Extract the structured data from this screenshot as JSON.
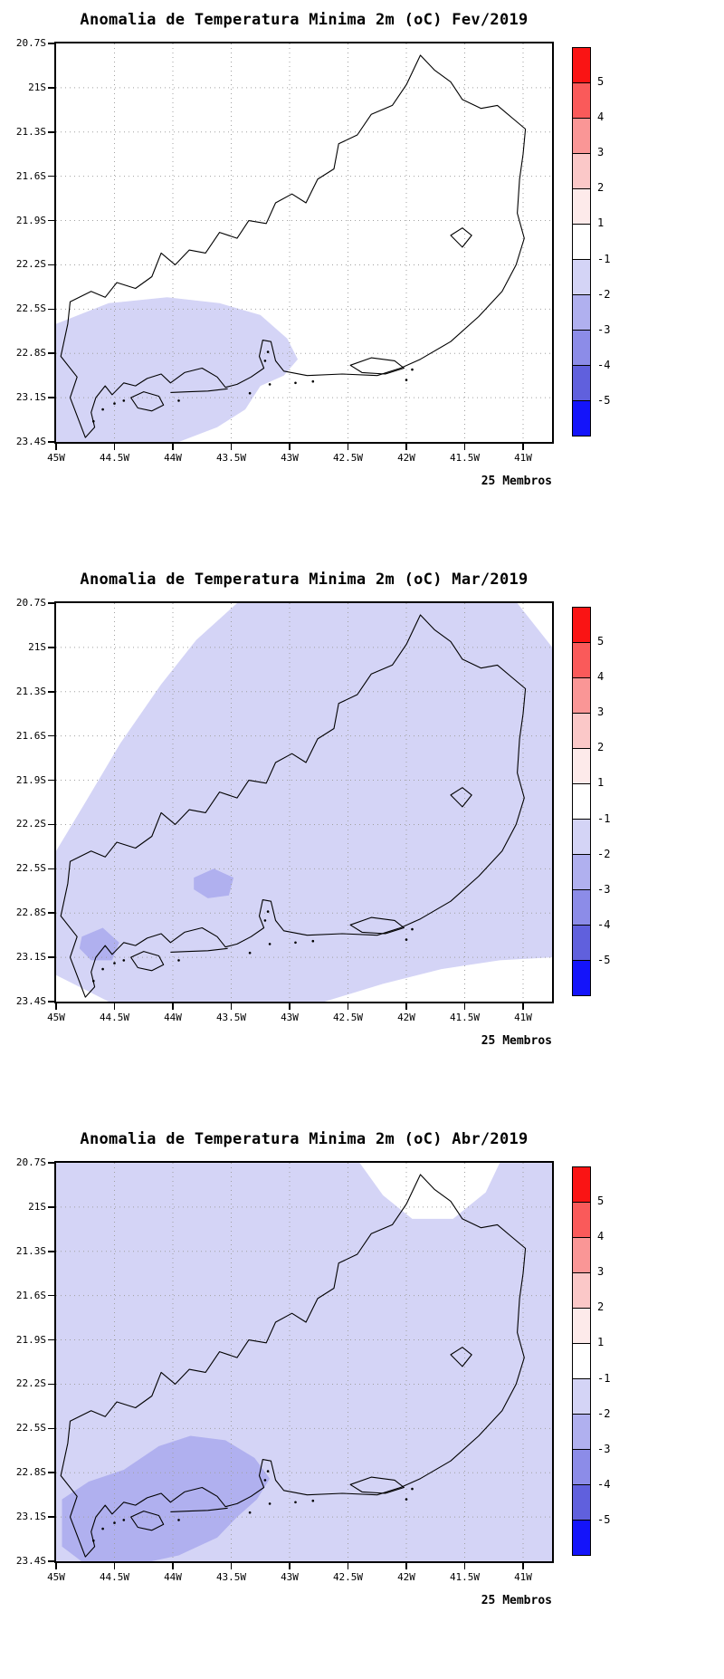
{
  "page": {
    "background": "#ffffff"
  },
  "panels": [
    {
      "title": "Anomalia de Temperatura Minima 2m (oC) Fev/2019",
      "members_label": "25 Membros"
    },
    {
      "title": "Anomalia de Temperatura Minima 2m (oC) Mar/2019",
      "members_label": "25 Membros"
    },
    {
      "title": "Anomalia de Temperatura Minima 2m (oC) Abr/2019",
      "members_label": "25 Membros"
    }
  ],
  "axes": {
    "lat_ticks": [
      {
        "label": "20.7S",
        "deg": 20.7
      },
      {
        "label": "21S",
        "deg": 21.0
      },
      {
        "label": "21.3S",
        "deg": 21.3
      },
      {
        "label": "21.6S",
        "deg": 21.6
      },
      {
        "label": "21.9S",
        "deg": 21.9
      },
      {
        "label": "22.2S",
        "deg": 22.2
      },
      {
        "label": "22.5S",
        "deg": 22.5
      },
      {
        "label": "22.8S",
        "deg": 22.8
      },
      {
        "label": "23.1S",
        "deg": 23.1
      },
      {
        "label": "23.4S",
        "deg": 23.4
      }
    ],
    "lon_ticks": [
      {
        "label": "45W",
        "deg": 45.0
      },
      {
        "label": "44.5W",
        "deg": 44.5
      },
      {
        "label": "44W",
        "deg": 44.0
      },
      {
        "label": "43.5W",
        "deg": 43.5
      },
      {
        "label": "43W",
        "deg": 43.0
      },
      {
        "label": "42.5W",
        "deg": 42.5
      },
      {
        "label": "42W",
        "deg": 42.0
      },
      {
        "label": "41.5W",
        "deg": 41.5
      },
      {
        "label": "41W",
        "deg": 41.0
      }
    ]
  },
  "colorbar": {
    "tick_labels": [
      "5",
      "4",
      "3",
      "2",
      "1",
      "-1",
      "-2",
      "-3",
      "-4",
      "-5"
    ],
    "segments": [
      "#fa1414",
      "#fa5a5a",
      "#fa9696",
      "#fbc8c8",
      "#fdeaea",
      "#ffffff",
      "#d4d4f6",
      "#b0b0ef",
      "#8c8ce8",
      "#6060dd",
      "#1414fa"
    ]
  },
  "chart_data": [
    {
      "type": "heatmap",
      "title": "Anomalia de Temperatura Minima 2m (oC) Fev/2019",
      "region": "Rio de Janeiro state, Brazil (coastline and border outline)",
      "ensemble_note": "25 Membros",
      "x_axis": {
        "label": "longitude",
        "ticks": [
          "45W",
          "44.5W",
          "44W",
          "43.5W",
          "43W",
          "42.5W",
          "42W",
          "41.5W",
          "41W"
        ],
        "range_deg_west": [
          45.0,
          40.75
        ]
      },
      "y_axis": {
        "label": "latitude",
        "ticks": [
          "20.7S",
          "21S",
          "21.3S",
          "21.6S",
          "21.9S",
          "22.2S",
          "22.5S",
          "22.8S",
          "23.1S",
          "23.4S"
        ],
        "range_deg_south": [
          20.7,
          23.4
        ]
      },
      "colorbar_levels": [
        5,
        4,
        3,
        2,
        1,
        -1,
        -2,
        -3,
        -4,
        -5
      ],
      "grid": "dotted 0.5deg lon x 0.3deg lat",
      "background_anomaly_band_degC": "-1 to 1 (white)",
      "shaded_regions": [
        {
          "anomaly_band_degC": "-2 to -1",
          "color": "#d4d4f6",
          "polygon_lon_lat": [
            [
              45.0,
              22.6
            ],
            [
              44.55,
              22.46
            ],
            [
              44.05,
              22.42
            ],
            [
              43.6,
              22.46
            ],
            [
              43.25,
              22.54
            ],
            [
              43.02,
              22.7
            ],
            [
              42.93,
              22.84
            ],
            [
              43.05,
              22.95
            ],
            [
              43.25,
              23.02
            ],
            [
              43.38,
              23.18
            ],
            [
              43.62,
              23.3
            ],
            [
              43.95,
              23.4
            ],
            [
              44.4,
              23.44
            ],
            [
              45.0,
              23.42
            ]
          ]
        }
      ]
    },
    {
      "type": "heatmap",
      "title": "Anomalia de Temperatura Minima 2m (oC) Mar/2019",
      "region": "Rio de Janeiro state, Brazil (coastline and border outline)",
      "ensemble_note": "25 Membros",
      "x_axis": {
        "label": "longitude",
        "ticks": [
          "45W",
          "44.5W",
          "44W",
          "43.5W",
          "43W",
          "42.5W",
          "42W",
          "41.5W",
          "41W"
        ],
        "range_deg_west": [
          45.0,
          40.75
        ]
      },
      "y_axis": {
        "label": "latitude",
        "ticks": [
          "20.7S",
          "21S",
          "21.3S",
          "21.6S",
          "21.9S",
          "22.2S",
          "22.5S",
          "22.8S",
          "23.1S",
          "23.4S"
        ],
        "range_deg_south": [
          20.7,
          23.4
        ]
      },
      "colorbar_levels": [
        5,
        4,
        3,
        2,
        1,
        -1,
        -2,
        -3,
        -4,
        -5
      ],
      "grid": "dotted 0.5deg lon x 0.3deg lat",
      "background_anomaly_band_degC": "-1 to 1 (white corners only)",
      "shaded_regions": [
        {
          "anomaly_band_degC": "-2 to -1",
          "color": "#d4d4f6",
          "polygon_lon_lat": [
            [
              43.45,
              20.7
            ],
            [
              43.8,
              20.95
            ],
            [
              44.1,
              21.25
            ],
            [
              44.45,
              21.65
            ],
            [
              44.75,
              22.05
            ],
            [
              45.0,
              22.38
            ],
            [
              45.0,
              23.22
            ],
            [
              44.8,
              23.3
            ],
            [
              44.55,
              23.4
            ],
            [
              42.7,
              23.4
            ],
            [
              42.2,
              23.28
            ],
            [
              41.7,
              23.18
            ],
            [
              41.2,
              23.12
            ],
            [
              40.75,
              23.1
            ],
            [
              40.75,
              21.0
            ],
            [
              40.9,
              20.85
            ],
            [
              41.05,
              20.7
            ]
          ]
        },
        {
          "anomaly_band_degC": "-3 to -2",
          "color": "#b0b0ef",
          "polygon_lon_lat": [
            [
              43.82,
              22.56
            ],
            [
              43.65,
              22.5
            ],
            [
              43.48,
              22.56
            ],
            [
              43.52,
              22.68
            ],
            [
              43.7,
              22.7
            ],
            [
              43.82,
              22.64
            ]
          ]
        },
        {
          "anomaly_band_degC": "-3 to -2",
          "color": "#b0b0ef",
          "polygon_lon_lat": [
            [
              44.78,
              22.96
            ],
            [
              44.6,
              22.9
            ],
            [
              44.46,
              23.0
            ],
            [
              44.52,
              23.12
            ],
            [
              44.7,
              23.12
            ],
            [
              44.8,
              23.04
            ]
          ]
        }
      ]
    },
    {
      "type": "heatmap",
      "title": "Anomalia de Temperatura Minima 2m (oC) Abr/2019",
      "region": "Rio de Janeiro state, Brazil (coastline and border outline)",
      "ensemble_note": "25 Membros",
      "x_axis": {
        "label": "longitude",
        "ticks": [
          "45W",
          "44.5W",
          "44W",
          "43.5W",
          "43W",
          "42.5W",
          "42W",
          "41.5W",
          "41W"
        ],
        "range_deg_west": [
          45.0,
          40.75
        ]
      },
      "y_axis": {
        "label": "latitude",
        "ticks": [
          "20.7S",
          "21S",
          "21.3S",
          "21.6S",
          "21.9S",
          "22.2S",
          "22.5S",
          "22.8S",
          "23.1S",
          "23.4S"
        ],
        "range_deg_south": [
          20.7,
          23.4
        ]
      },
      "colorbar_levels": [
        5,
        4,
        3,
        2,
        1,
        -1,
        -2,
        -3,
        -4,
        -5
      ],
      "grid": "dotted 0.5deg lon x 0.3deg lat",
      "background_anomaly_band_degC": "-2 to -1 (almost full domain)",
      "shaded_regions": [
        {
          "anomaly_band_degC": "-2 to -1",
          "color": "#d4d4f6",
          "polygon_lon_lat": [
            [
              45.0,
              20.7
            ],
            [
              40.75,
              20.7
            ],
            [
              40.75,
              23.4
            ],
            [
              45.0,
              23.4
            ]
          ]
        },
        {
          "anomaly_band_degC": "-1 to 1",
          "color": "#ffffff",
          "polygon_lon_lat": [
            [
              42.4,
              20.7
            ],
            [
              42.2,
              20.92
            ],
            [
              41.95,
              21.08
            ],
            [
              41.6,
              21.08
            ],
            [
              41.32,
              20.9
            ],
            [
              41.2,
              20.7
            ]
          ]
        },
        {
          "anomaly_band_degC": "-3 to -2",
          "color": "#b0b0ef",
          "polygon_lon_lat": [
            [
              44.95,
              22.98
            ],
            [
              44.72,
              22.86
            ],
            [
              44.42,
              22.78
            ],
            [
              44.12,
              22.62
            ],
            [
              43.85,
              22.55
            ],
            [
              43.55,
              22.58
            ],
            [
              43.3,
              22.7
            ],
            [
              43.17,
              22.84
            ],
            [
              43.28,
              22.98
            ],
            [
              43.45,
              23.1
            ],
            [
              43.62,
              23.24
            ],
            [
              43.95,
              23.36
            ],
            [
              44.3,
              23.42
            ],
            [
              44.75,
              23.42
            ],
            [
              44.95,
              23.3
            ]
          ]
        }
      ]
    }
  ]
}
